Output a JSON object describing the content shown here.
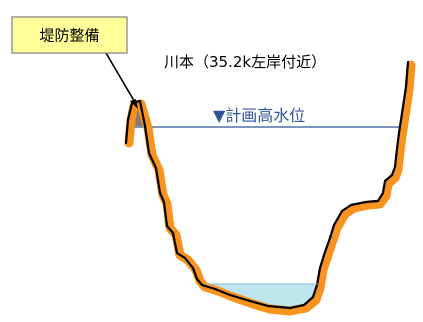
{
  "callout": {
    "label": "堤防整備",
    "fill_color": "#FFFF99",
    "border_color": "#808080"
  },
  "location_label": "川本（35.2k左岸付近）",
  "high_water_level": {
    "label": "▼計画高水位",
    "color": "#2F5597"
  },
  "colors": {
    "ground_outline": "#F7931E",
    "ground_line": "#000000",
    "levee": "#8C7A6B",
    "water": "#BFE6EF"
  }
}
